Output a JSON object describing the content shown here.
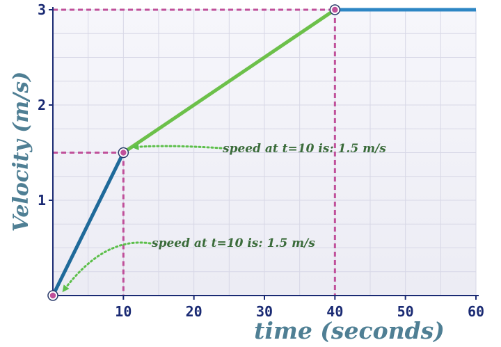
{
  "chart_data": {
    "type": "line",
    "title": "",
    "xlabel": "time (seconds)",
    "ylabel": "Velocity (m/s)",
    "xlim": [
      0,
      60
    ],
    "ylim": [
      0,
      3
    ],
    "x_ticks": [
      "10",
      "20",
      "30",
      "40",
      "50",
      "60"
    ],
    "y_ticks": [
      "1",
      "2",
      "3"
    ],
    "x_minor_step": 5,
    "y_minor_step": 0.25,
    "grid": true,
    "series": [
      {
        "color": "#1f6a9a",
        "x": [
          0,
          10
        ],
        "y": [
          0,
          1.5
        ]
      },
      {
        "color": "#6cc04a",
        "x": [
          10,
          40
        ],
        "y": [
          1.5,
          3
        ]
      },
      {
        "color": "#2d86c4",
        "x": [
          40,
          60
        ],
        "y": [
          3,
          3
        ]
      }
    ],
    "highlight_points": [
      {
        "x": 0,
        "y": 0
      },
      {
        "x": 10,
        "y": 1.5
      },
      {
        "x": 40,
        "y": 3
      }
    ],
    "guide_color": "#c0509a",
    "annotations": [
      {
        "text": "speed at t=10 is: 1.5 m/s",
        "target_x": 10,
        "target_y": 1.5
      },
      {
        "text": "speed at t=10 is: 1.5 m/s",
        "target_x": 0,
        "target_y": 0
      }
    ],
    "annotation_color": "#5cbf4a"
  }
}
